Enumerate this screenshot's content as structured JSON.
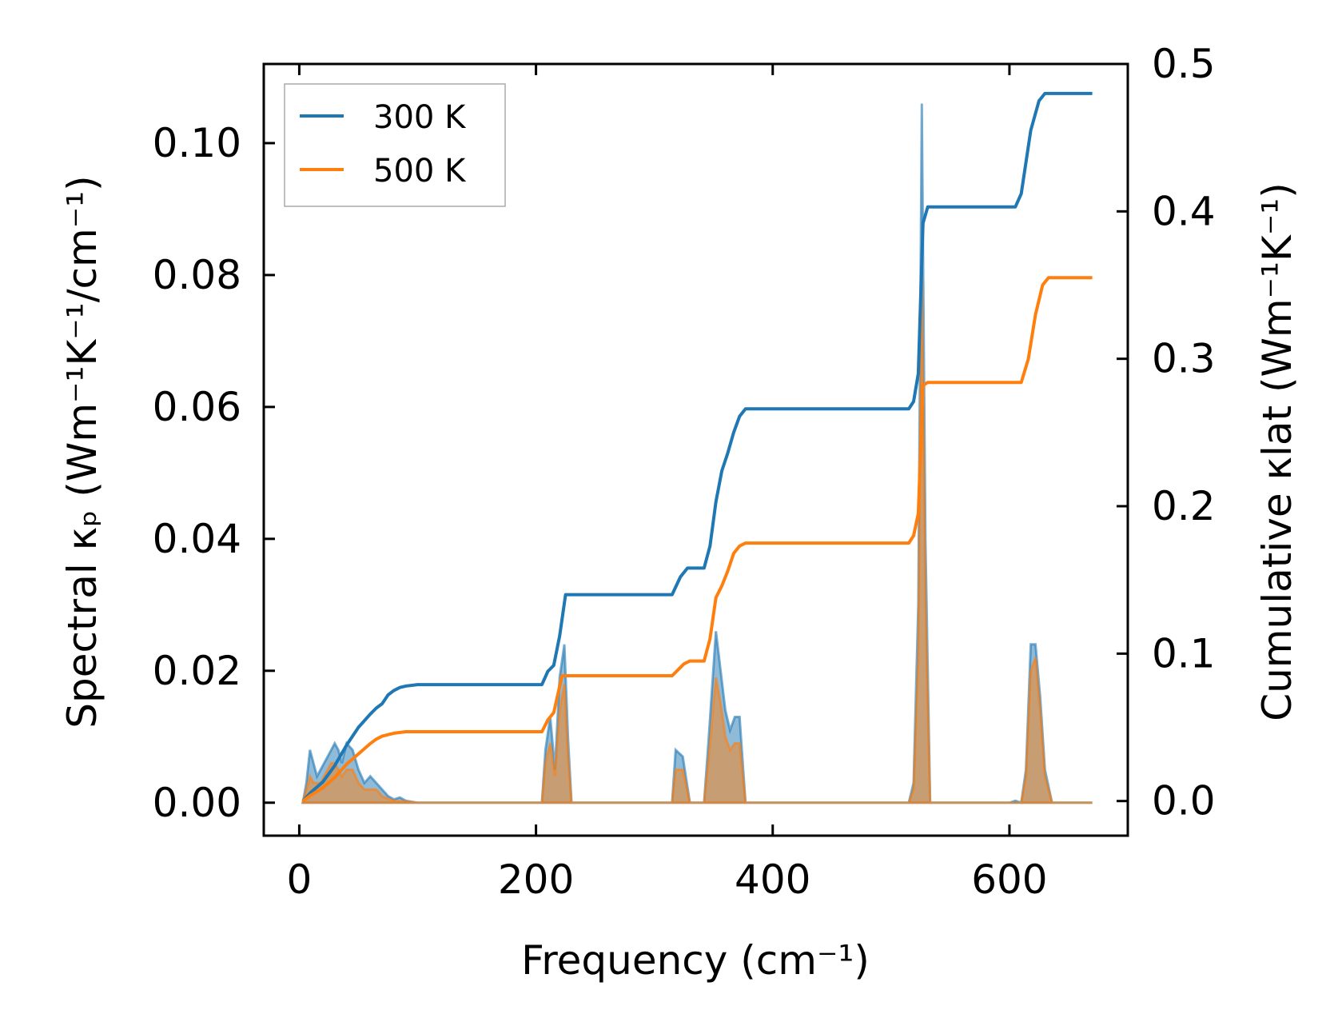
{
  "chart_data": {
    "type": "line",
    "xlabel": "Frequency (cm⁻¹)",
    "ylabel_left": "Spectral κₚ (Wm⁻¹K⁻¹/cm⁻¹)",
    "ylabel_right": "Cumulative κlat (Wm⁻¹K⁻¹)",
    "xlim": [
      -30,
      700
    ],
    "ylim_left": [
      -0.005,
      0.112
    ],
    "ylim_right": [
      -0.0235,
      0.5
    ],
    "x_ticks": [
      0,
      200,
      400,
      600
    ],
    "x_tick_labels": [
      "0",
      "200",
      "400",
      "600"
    ],
    "y_left_ticks": [
      0.0,
      0.02,
      0.04,
      0.06,
      0.08,
      0.1
    ],
    "y_left_tick_labels": [
      "0.00",
      "0.02",
      "0.04",
      "0.06",
      "0.08",
      "0.10"
    ],
    "y_right_ticks": [
      0.0,
      0.1,
      0.2,
      0.3,
      0.4,
      0.5
    ],
    "y_right_tick_labels": [
      "0.0",
      "0.1",
      "0.2",
      "0.3",
      "0.4",
      "0.5"
    ],
    "grid": false,
    "legend_position": "top-left",
    "series": [
      {
        "name": "300 K",
        "color": "#1f77b4",
        "axis": "right",
        "kind": "cumulative",
        "points": [
          [
            3,
            0.0
          ],
          [
            10,
            0.006
          ],
          [
            20,
            0.013
          ],
          [
            30,
            0.024
          ],
          [
            40,
            0.038
          ],
          [
            50,
            0.05
          ],
          [
            60,
            0.059
          ],
          [
            65,
            0.063
          ],
          [
            70,
            0.066
          ],
          [
            75,
            0.072
          ],
          [
            80,
            0.075
          ],
          [
            85,
            0.077
          ],
          [
            90,
            0.078
          ],
          [
            100,
            0.079
          ],
          [
            205,
            0.079
          ],
          [
            210,
            0.088
          ],
          [
            215,
            0.092
          ],
          [
            220,
            0.112
          ],
          [
            225,
            0.14
          ],
          [
            230,
            0.14
          ],
          [
            315,
            0.14
          ],
          [
            322,
            0.152
          ],
          [
            328,
            0.158
          ],
          [
            342,
            0.158
          ],
          [
            347,
            0.173
          ],
          [
            352,
            0.203
          ],
          [
            357,
            0.224
          ],
          [
            362,
            0.236
          ],
          [
            367,
            0.25
          ],
          [
            372,
            0.261
          ],
          [
            377,
            0.266
          ],
          [
            515,
            0.266
          ],
          [
            519,
            0.271
          ],
          [
            523,
            0.29
          ],
          [
            527,
            0.392
          ],
          [
            531,
            0.403
          ],
          [
            605,
            0.403
          ],
          [
            610,
            0.412
          ],
          [
            618,
            0.455
          ],
          [
            625,
            0.475
          ],
          [
            630,
            0.48
          ],
          [
            670,
            0.48
          ]
        ]
      },
      {
        "name": "500 K",
        "color": "#ff7f0e",
        "axis": "right",
        "kind": "cumulative",
        "points": [
          [
            3,
            0.0
          ],
          [
            10,
            0.004
          ],
          [
            20,
            0.009
          ],
          [
            30,
            0.016
          ],
          [
            40,
            0.025
          ],
          [
            50,
            0.032
          ],
          [
            60,
            0.039
          ],
          [
            65,
            0.042
          ],
          [
            70,
            0.044
          ],
          [
            75,
            0.045
          ],
          [
            80,
            0.046
          ],
          [
            90,
            0.047
          ],
          [
            100,
            0.047
          ],
          [
            205,
            0.047
          ],
          [
            210,
            0.055
          ],
          [
            215,
            0.06
          ],
          [
            222,
            0.085
          ],
          [
            228,
            0.085
          ],
          [
            315,
            0.085
          ],
          [
            325,
            0.093
          ],
          [
            330,
            0.095
          ],
          [
            342,
            0.095
          ],
          [
            347,
            0.11
          ],
          [
            352,
            0.138
          ],
          [
            357,
            0.146
          ],
          [
            362,
            0.156
          ],
          [
            367,
            0.168
          ],
          [
            372,
            0.173
          ],
          [
            377,
            0.175
          ],
          [
            515,
            0.175
          ],
          [
            519,
            0.18
          ],
          [
            523,
            0.195
          ],
          [
            527,
            0.282
          ],
          [
            531,
            0.284
          ],
          [
            610,
            0.284
          ],
          [
            616,
            0.3
          ],
          [
            622,
            0.33
          ],
          [
            628,
            0.35
          ],
          [
            633,
            0.355
          ],
          [
            670,
            0.355
          ]
        ]
      },
      {
        "name": "300 K spectral",
        "color": "#1f77b4",
        "axis": "left",
        "kind": "spectral",
        "points": [
          [
            3,
            0.0
          ],
          [
            6,
            0.003
          ],
          [
            9,
            0.008
          ],
          [
            12,
            0.006
          ],
          [
            15,
            0.004
          ],
          [
            18,
            0.005
          ],
          [
            21,
            0.006
          ],
          [
            24,
            0.007
          ],
          [
            27,
            0.008
          ],
          [
            30,
            0.009
          ],
          [
            33,
            0.008
          ],
          [
            36,
            0.006
          ],
          [
            40,
            0.009
          ],
          [
            45,
            0.008
          ],
          [
            50,
            0.005
          ],
          [
            55,
            0.003
          ],
          [
            60,
            0.004
          ],
          [
            65,
            0.003
          ],
          [
            70,
            0.002
          ],
          [
            75,
            0.001
          ],
          [
            80,
            0.0005
          ],
          [
            85,
            0.0008
          ],
          [
            90,
            0.0003
          ],
          [
            100,
            0.0
          ],
          [
            205,
            0.0
          ],
          [
            208,
            0.008
          ],
          [
            212,
            0.013
          ],
          [
            216,
            0.005
          ],
          [
            220,
            0.019
          ],
          [
            224,
            0.024
          ],
          [
            227,
            0.01
          ],
          [
            230,
            0.0
          ],
          [
            315,
            0.0
          ],
          [
            318,
            0.008
          ],
          [
            324,
            0.007
          ],
          [
            330,
            0.0
          ],
          [
            342,
            0.0
          ],
          [
            346,
            0.01
          ],
          [
            352,
            0.026
          ],
          [
            356,
            0.02
          ],
          [
            360,
            0.014
          ],
          [
            364,
            0.011
          ],
          [
            368,
            0.013
          ],
          [
            372,
            0.013
          ],
          [
            377,
            0.0
          ],
          [
            515,
            0.0
          ],
          [
            519,
            0.003
          ],
          [
            523,
            0.03
          ],
          [
            526,
            0.106
          ],
          [
            529,
            0.04
          ],
          [
            533,
            0.0
          ],
          [
            600,
            0.0
          ],
          [
            605,
            0.0003
          ],
          [
            610,
            0.0
          ],
          [
            614,
            0.005
          ],
          [
            618,
            0.024
          ],
          [
            622,
            0.024
          ],
          [
            626,
            0.016
          ],
          [
            630,
            0.005
          ],
          [
            636,
            0.0
          ],
          [
            670,
            0.0
          ]
        ]
      },
      {
        "name": "500 K spectral",
        "color": "#ff7f0e",
        "axis": "left",
        "kind": "spectral",
        "points": [
          [
            3,
            0.0
          ],
          [
            6,
            0.002
          ],
          [
            9,
            0.004
          ],
          [
            12,
            0.003
          ],
          [
            15,
            0.003
          ],
          [
            18,
            0.003
          ],
          [
            21,
            0.004
          ],
          [
            24,
            0.005
          ],
          [
            27,
            0.006
          ],
          [
            30,
            0.006
          ],
          [
            33,
            0.005
          ],
          [
            36,
            0.004
          ],
          [
            40,
            0.005
          ],
          [
            45,
            0.005
          ],
          [
            50,
            0.003
          ],
          [
            55,
            0.002
          ],
          [
            60,
            0.002
          ],
          [
            65,
            0.002
          ],
          [
            70,
            0.001
          ],
          [
            75,
            0.0006
          ],
          [
            80,
            0.0003
          ],
          [
            90,
            0.0002
          ],
          [
            100,
            0.0
          ],
          [
            205,
            0.0
          ],
          [
            208,
            0.006
          ],
          [
            212,
            0.009
          ],
          [
            216,
            0.004
          ],
          [
            220,
            0.014
          ],
          [
            224,
            0.018
          ],
          [
            227,
            0.007
          ],
          [
            230,
            0.0
          ],
          [
            315,
            0.0
          ],
          [
            318,
            0.005
          ],
          [
            324,
            0.005
          ],
          [
            330,
            0.0
          ],
          [
            342,
            0.0
          ],
          [
            346,
            0.007
          ],
          [
            352,
            0.019
          ],
          [
            356,
            0.015
          ],
          [
            360,
            0.01
          ],
          [
            364,
            0.008
          ],
          [
            368,
            0.009
          ],
          [
            372,
            0.009
          ],
          [
            377,
            0.0
          ],
          [
            515,
            0.0
          ],
          [
            519,
            0.002
          ],
          [
            523,
            0.022
          ],
          [
            526,
            0.08
          ],
          [
            529,
            0.03
          ],
          [
            533,
            0.0
          ],
          [
            600,
            0.0
          ],
          [
            610,
            0.0
          ],
          [
            614,
            0.004
          ],
          [
            618,
            0.02
          ],
          [
            622,
            0.022
          ],
          [
            626,
            0.014
          ],
          [
            630,
            0.004
          ],
          [
            636,
            0.0
          ],
          [
            670,
            0.0
          ]
        ]
      }
    ]
  }
}
